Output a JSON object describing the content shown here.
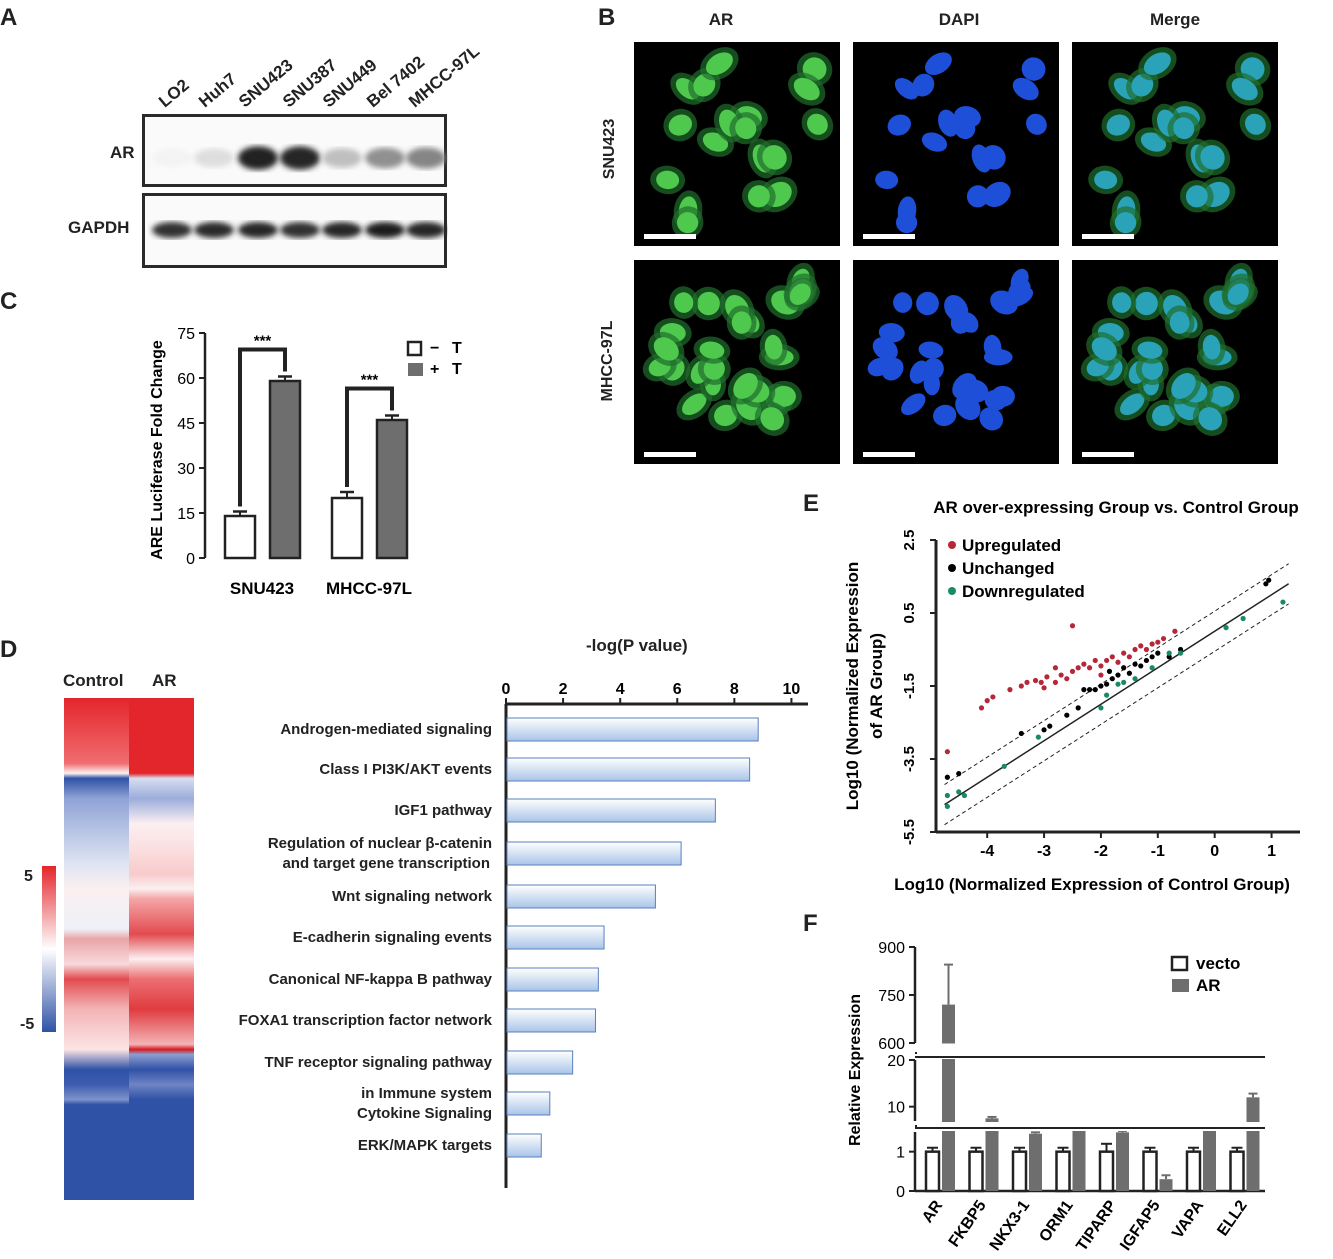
{
  "panels": {
    "A": "A",
    "B": "B",
    "C": "C",
    "D": "D",
    "E": "E",
    "F": "F"
  },
  "panelA": {
    "lanes": [
      "LO2",
      "Huh7",
      "SNU423",
      "SNU387",
      "SNU449",
      "Bel 7402",
      "MHCC-97L"
    ],
    "rows": [
      "AR",
      "GAPDH"
    ],
    "ar_intensity": [
      0.03,
      0.12,
      0.92,
      0.9,
      0.25,
      0.45,
      0.5
    ],
    "gapdh_intensity": [
      0.85,
      0.88,
      0.9,
      0.85,
      0.9,
      0.95,
      0.9
    ]
  },
  "panelB": {
    "columns": [
      "AR",
      "DAPI",
      "Merge"
    ],
    "rows": [
      "SNU423",
      "MHCC-97L"
    ]
  },
  "panelD": {
    "heatmap_cols": [
      "Control",
      "AR"
    ],
    "scale_max": "5",
    "scale_min": "-5",
    "axis_title": "-log(P value)",
    "pathways": [
      "Androgen-mediated signaling",
      "Class I PI3K/AKT events",
      "IGF1 pathway",
      "Regulation of nuclear β-catenin\nand target gene transcription",
      "Wnt signaling network",
      "E-cadherin signaling events",
      "Canonical NF-kappa B pathway",
      "FOXA1 transcription factor network",
      "TNF receptor signaling pathway",
      "in Immune system\nCytokine Signaling",
      "ERK/MAPK targets"
    ]
  },
  "chart_data": [
    {
      "panel": "C",
      "type": "bar",
      "categories": [
        "SNU423",
        "MHCC-97L"
      ],
      "series": [
        {
          "name": "− T",
          "values": [
            14,
            20
          ],
          "errors": [
            1.5,
            2
          ],
          "color": "#ffffff"
        },
        {
          "name": "+ T",
          "values": [
            59,
            46
          ],
          "errors": [
            1.5,
            1.5
          ],
          "color": "#6d6e6d"
        }
      ],
      "ylabel": "ARE Luciferase Fold Change",
      "ylim": [
        0,
        75
      ],
      "yticks": [
        "0",
        "15",
        "30",
        "45",
        "60",
        "75"
      ],
      "annotations": [
        "***",
        "***"
      ],
      "legend": [
        "−",
        "T",
        "+",
        "T"
      ]
    },
    {
      "panel": "D",
      "type": "bar",
      "orientation": "horizontal",
      "categories": [
        "Androgen-mediated signaling",
        "Class I PI3K/AKT events",
        "IGF1 pathway",
        "Regulation of nuclear β-catenin and target gene transcription",
        "Wnt signaling network",
        "E-cadherin signaling events",
        "Canonical NF-kappa B pathway",
        "FOXA1 transcription factor network",
        "TNF receptor signaling pathway",
        "in Immune system Cytokine Signaling",
        "ERK/MAPK targets"
      ],
      "values": [
        8.8,
        8.5,
        7.3,
        6.1,
        5.2,
        3.4,
        3.2,
        3.1,
        2.3,
        1.5,
        1.2
      ],
      "xlabel": "-log(P value)",
      "xlim": [
        0,
        10.3
      ],
      "xticks": [
        "0",
        "2",
        "4",
        "6",
        "8",
        "10"
      ]
    },
    {
      "panel": "E",
      "type": "scatter",
      "title": "AR over-expressing Group  vs. Control Group",
      "xlabel": "Log10 (Normalized Expression of Control Group)",
      "ylabel": "Log10 (Normalized Expression\nof AR  Group)",
      "xlim": [
        -4.9,
        1.5
      ],
      "ylim": [
        -5.5,
        2.5
      ],
      "xticks": [
        "-4",
        "-3",
        "-2",
        "-1",
        "0",
        "1"
      ],
      "yticks": [
        "2.5",
        "0.5",
        "-1.5",
        "-3.5",
        "-5.5"
      ],
      "legend": [
        "Upregulated",
        "Unchanged",
        "Downregulated"
      ],
      "colors": {
        "Upregulated": "#b5283a",
        "Unchanged": "#000000",
        "Downregulated": "#1a8a63"
      },
      "series": [
        {
          "name": "Upregulated",
          "points": [
            [
              -4.7,
              -3.3
            ],
            [
              -4.1,
              -2.1
            ],
            [
              -4.0,
              -1.9
            ],
            [
              -3.9,
              -1.8
            ],
            [
              -3.6,
              -1.6
            ],
            [
              -3.4,
              -1.5
            ],
            [
              -3.3,
              -1.4
            ],
            [
              -3.15,
              -1.35
            ],
            [
              -3.05,
              -1.4
            ],
            [
              -2.95,
              -1.25
            ],
            [
              -2.8,
              -1.0
            ],
            [
              -2.7,
              -1.2
            ],
            [
              -2.6,
              -1.3
            ],
            [
              -2.5,
              -1.1
            ],
            [
              -2.4,
              -1.0
            ],
            [
              -2.3,
              -0.9
            ],
            [
              -2.2,
              -1.0
            ],
            [
              -2.1,
              -0.8
            ],
            [
              -2.0,
              -0.95
            ],
            [
              -1.9,
              -0.8
            ],
            [
              -1.8,
              -0.7
            ],
            [
              -1.7,
              -0.85
            ],
            [
              -1.6,
              -0.6
            ],
            [
              -1.5,
              -0.7
            ],
            [
              -1.4,
              -0.5
            ],
            [
              -1.3,
              -0.4
            ],
            [
              -1.2,
              -0.5
            ],
            [
              -1.1,
              -0.35
            ],
            [
              -1.0,
              -0.3
            ],
            [
              -0.9,
              -0.2
            ],
            [
              -0.7,
              0.0
            ],
            [
              -2.5,
              0.15
            ],
            [
              -2.0,
              -1.2
            ],
            [
              -2.8,
              -1.4
            ],
            [
              -3.0,
              -1.55
            ]
          ]
        },
        {
          "name": "Unchanged",
          "points": [
            [
              -4.7,
              -4.0
            ],
            [
              -4.5,
              -3.9
            ],
            [
              -3.4,
              -2.8
            ],
            [
              -3.0,
              -2.7
            ],
            [
              -2.9,
              -2.6
            ],
            [
              -2.6,
              -2.3
            ],
            [
              -2.4,
              -2.1
            ],
            [
              -2.2,
              -1.6
            ],
            [
              -2.1,
              -1.6
            ],
            [
              -2.0,
              -1.5
            ],
            [
              -1.9,
              -1.45
            ],
            [
              -1.8,
              -1.3
            ],
            [
              -1.7,
              -1.2
            ],
            [
              -1.6,
              -1.0
            ],
            [
              -1.5,
              -1.15
            ],
            [
              -1.4,
              -0.9
            ],
            [
              -1.3,
              -0.95
            ],
            [
              -1.2,
              -0.8
            ],
            [
              -1.1,
              -0.7
            ],
            [
              -1.0,
              -0.6
            ],
            [
              -0.8,
              -0.7
            ],
            [
              -0.6,
              -0.5
            ],
            [
              0.9,
              1.3
            ],
            [
              0.95,
              1.4
            ],
            [
              -2.3,
              -1.6
            ],
            [
              -1.85,
              -1.1
            ]
          ]
        },
        {
          "name": "Downregulated",
          "points": [
            [
              -4.7,
              -4.8
            ],
            [
              -4.7,
              -4.5
            ],
            [
              -4.5,
              -4.4
            ],
            [
              -4.4,
              -4.5
            ],
            [
              -3.7,
              -3.7
            ],
            [
              -3.1,
              -2.9
            ],
            [
              -2.0,
              -2.1
            ],
            [
              -1.9,
              -1.75
            ],
            [
              -1.6,
              -1.4
            ],
            [
              -1.4,
              -1.3
            ],
            [
              -1.1,
              -1.0
            ],
            [
              -0.8,
              -0.6
            ],
            [
              0.2,
              0.1
            ],
            [
              0.5,
              0.35
            ],
            [
              1.2,
              0.8
            ],
            [
              -0.6,
              -0.6
            ],
            [
              -1.7,
              -1.45
            ]
          ]
        }
      ]
    },
    {
      "panel": "F",
      "type": "bar",
      "categories": [
        "AR",
        "FKBP5",
        "NKX3-1",
        "ORM1",
        "TIPARP",
        "IGFAP5",
        "VAPA",
        "ELL2"
      ],
      "series": [
        {
          "name": "vecto",
          "values": [
            1,
            1,
            1,
            1,
            1,
            1,
            1,
            1
          ],
          "errors": [
            0.1,
            0.1,
            0.1,
            0.1,
            0.2,
            0.1,
            0.1,
            0.1
          ],
          "color": "#ffffff"
        },
        {
          "name": "AR",
          "values": [
            720,
            7.5,
            4.2,
            4.8,
            4.5,
            0.3,
            5.2,
            12
          ],
          "errors": [
            125,
            0.3,
            0.3,
            0.8,
            0.3,
            0.1,
            0.5,
            0.8
          ],
          "color": "#6d6e6d"
        }
      ],
      "ylabel": "Relative Expression",
      "axis_breaks": true,
      "yticks_top": [
        "900",
        "750",
        "600"
      ],
      "yticks_mid": [
        "20",
        "10"
      ],
      "yticks_bottom": [
        "1",
        "0"
      ]
    }
  ]
}
